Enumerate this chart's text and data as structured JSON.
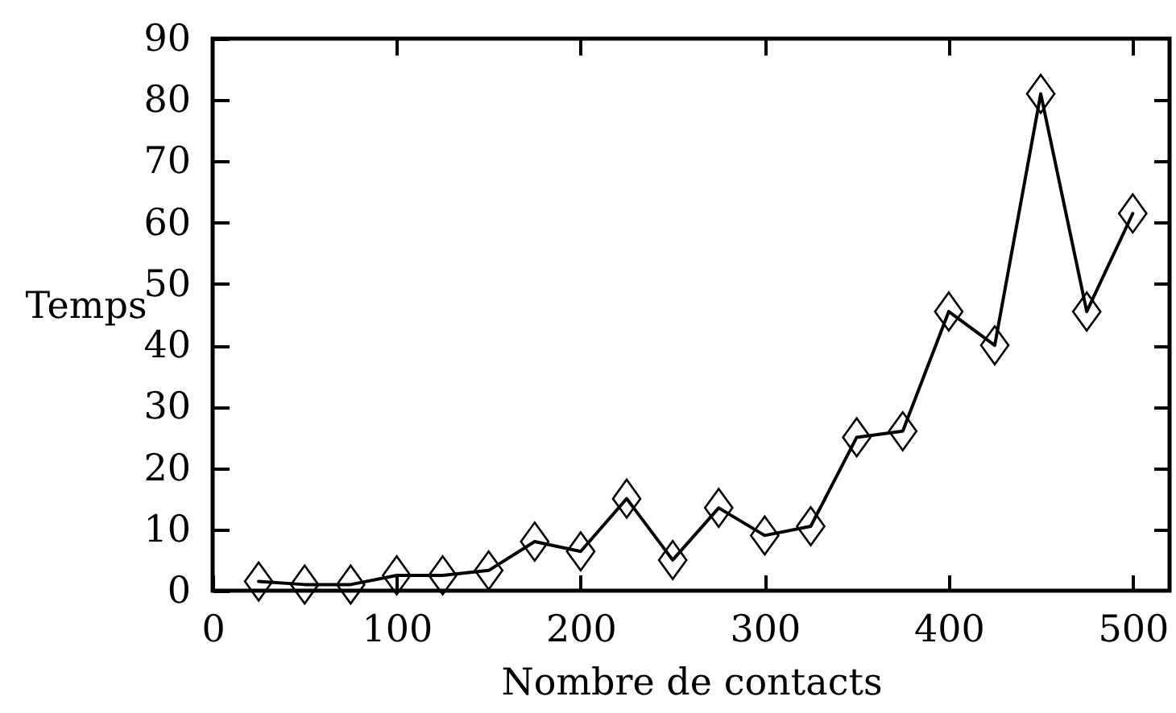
{
  "chart_data": {
    "type": "line",
    "xlabel": "Nombre de contacts",
    "ylabel": "Temps",
    "x": [
      25,
      50,
      75,
      100,
      125,
      150,
      175,
      200,
      225,
      250,
      275,
      300,
      325,
      350,
      375,
      400,
      425,
      450,
      475,
      500
    ],
    "series": [
      {
        "color": "#000000",
        "values": [
          1.5,
          1,
          1,
          2.5,
          2.5,
          3.3,
          8,
          6.4,
          15,
          5,
          13.5,
          9,
          10.5,
          25,
          26,
          45.5,
          40,
          81,
          45.5,
          61.5
        ]
      }
    ],
    "xlim": [
      0,
      520
    ],
    "ylim": [
      0,
      90
    ],
    "xticks": [
      0,
      100,
      200,
      300,
      400,
      500
    ],
    "yticks": [
      0,
      10,
      20,
      30,
      40,
      50,
      60,
      70,
      80,
      90
    ],
    "marker": "diamond",
    "line_style": "solid"
  }
}
